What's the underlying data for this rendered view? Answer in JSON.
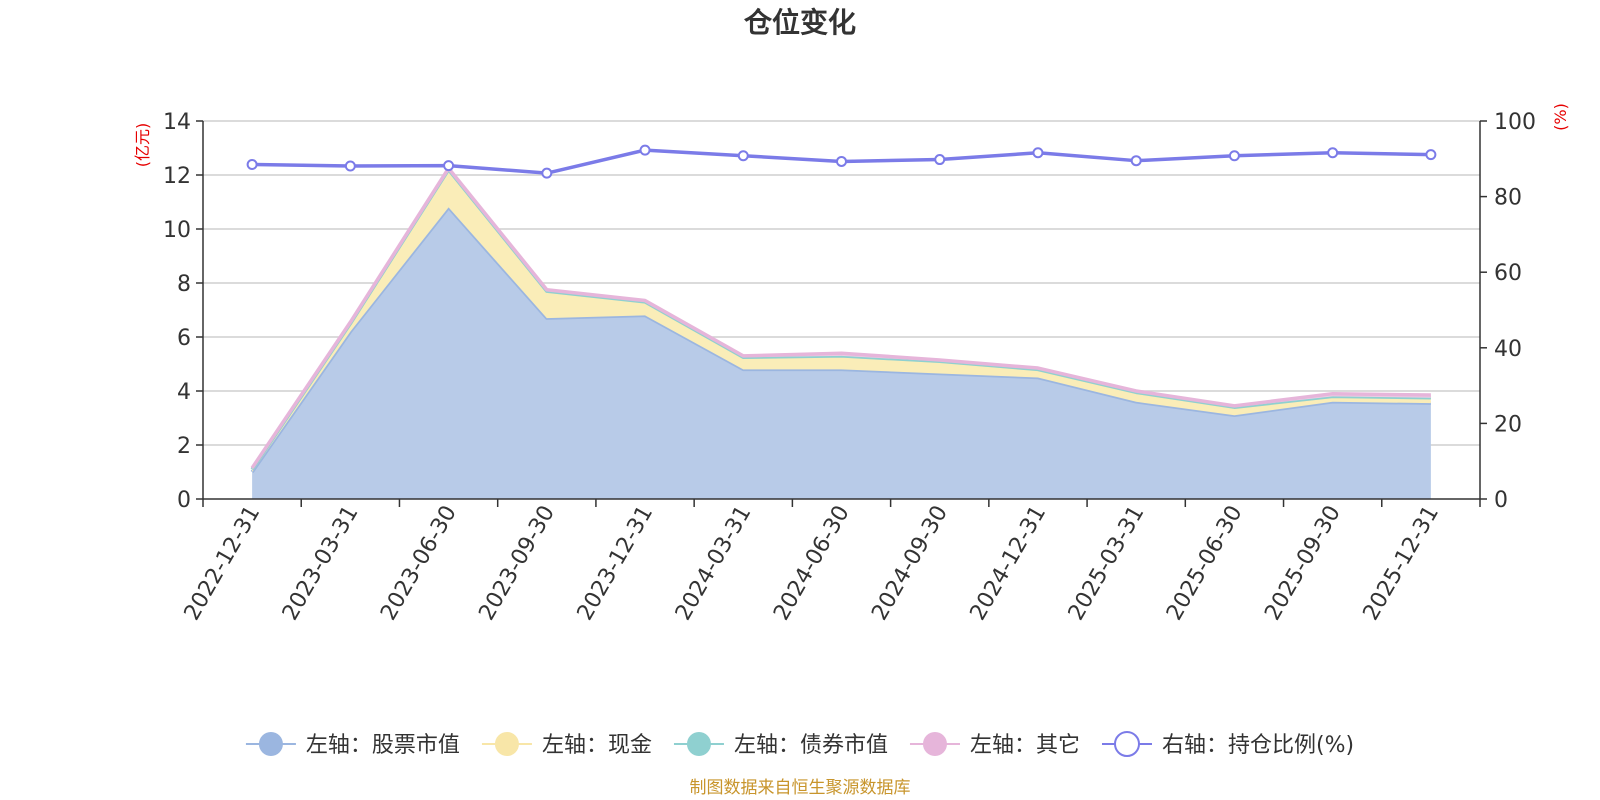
{
  "chart_data": {
    "type": "area",
    "title": "仓位变化",
    "categories": [
      "2022-12-31",
      "2023-03-31",
      "2023-06-30",
      "2023-09-30",
      "2023-12-31",
      "2024-03-31",
      "2024-06-30",
      "2024-09-30",
      "2024-12-31",
      "2025-03-31",
      "2025-06-30",
      "2025-09-30",
      "2025-12-31"
    ],
    "left_axis": {
      "unit": "(亿元)",
      "ylim": [
        0,
        14
      ],
      "ticks": [
        "0",
        "2",
        "4",
        "6",
        "8",
        "10",
        "12",
        "14"
      ]
    },
    "right_axis": {
      "unit": "(%)",
      "ylim": [
        0,
        100
      ],
      "ticks": [
        "0",
        "20",
        "40",
        "60",
        "80",
        "100"
      ]
    },
    "stacked": true,
    "series": [
      {
        "name": "左轴：股票市值",
        "axis": "left",
        "type": "area",
        "color": "#9bb6e0",
        "fill": "#b8cbe8",
        "values": [
          1.0,
          6.2,
          10.8,
          6.7,
          6.8,
          4.8,
          4.8,
          4.65,
          4.5,
          3.6,
          3.1,
          3.6,
          3.55
        ]
      },
      {
        "name": "左轴：现金",
        "axis": "left",
        "type": "area",
        "color": "#f8e6a8",
        "fill": "#faedb8",
        "values": [
          0.1,
          0.3,
          1.4,
          1.0,
          0.5,
          0.45,
          0.5,
          0.45,
          0.3,
          0.35,
          0.3,
          0.2,
          0.2
        ]
      },
      {
        "name": "左轴：债券市值",
        "axis": "left",
        "type": "area",
        "color": "#8fd0d0",
        "fill": "#a8dcdc",
        "values": [
          0,
          0,
          0,
          0,
          0,
          0,
          0,
          0,
          0,
          0,
          0,
          0,
          0
        ]
      },
      {
        "name": "左轴：其它",
        "axis": "left",
        "type": "area",
        "color": "#e6b5da",
        "fill": "#efcde6",
        "values": [
          0.05,
          0.05,
          0.05,
          0.05,
          0.05,
          0.05,
          0.1,
          0.05,
          0.05,
          0.05,
          0.05,
          0.1,
          0.1
        ]
      },
      {
        "name": "右轴：持仓比例(%)",
        "axis": "right",
        "type": "line",
        "color": "#7b7be8",
        "values": [
          88.5,
          88.1,
          88.2,
          86.2,
          92.3,
          90.8,
          89.3,
          89.8,
          91.6,
          89.5,
          90.8,
          91.6,
          91.1
        ]
      }
    ],
    "legend_position": "bottom",
    "grid": true
  },
  "footer": {
    "source": "制图数据来自恒生聚源数据库"
  }
}
